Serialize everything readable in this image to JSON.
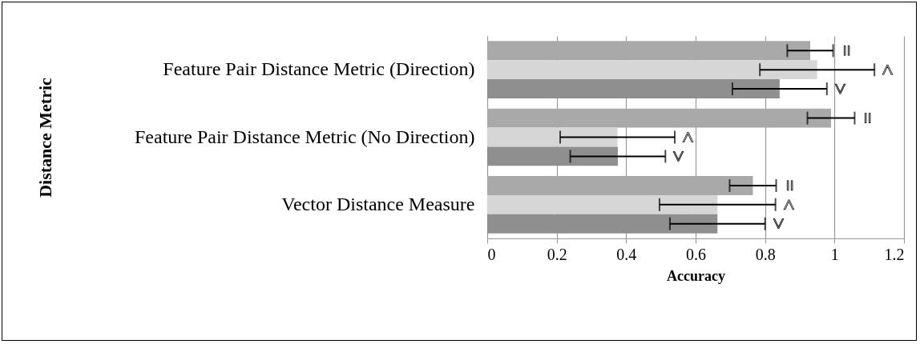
{
  "chart_data": {
    "type": "bar",
    "orientation": "horizontal",
    "xlabel": "Accuracy",
    "ylabel": "Distance Metric",
    "categories": [
      "Feature Pair Distance Metric (Direction)",
      "Feature Pair Distance Metric (No Direction)",
      "Vector Distance Measure"
    ],
    "series": [
      {
        "name": "=",
        "color": "#a9a9a9",
        "values": [
          0.93,
          0.99,
          0.765
        ],
        "errors": [
          0.066,
          0.068,
          0.067
        ]
      },
      {
        "name": "<",
        "color": "#d6d6d6",
        "values": [
          0.95,
          0.375,
          0.663
        ],
        "errors": [
          0.165,
          0.165,
          0.167
        ]
      },
      {
        "name": ">",
        "color": "#8f8f8f",
        "values": [
          0.842,
          0.376,
          0.663
        ],
        "errors": [
          0.136,
          0.137,
          0.137
        ]
      }
    ],
    "xlim": [
      0,
      1.2
    ],
    "xticks": [
      0,
      0.2,
      0.4,
      0.6,
      0.8,
      1,
      1.2
    ],
    "grid": "x",
    "legend": false
  }
}
